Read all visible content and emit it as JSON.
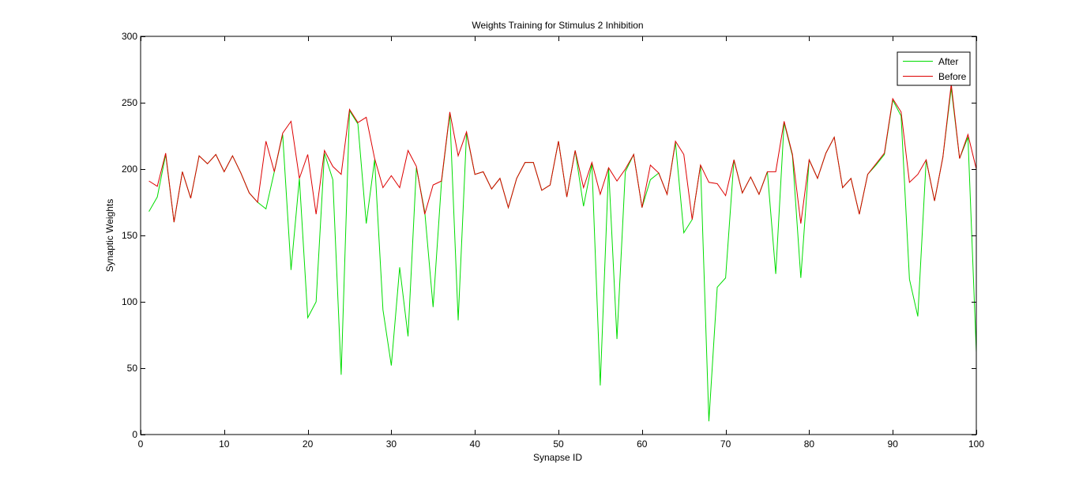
{
  "chart_data": {
    "type": "line",
    "title": "Weights Training for Stimulus 2 Inhibition",
    "xlabel": "Synapse ID",
    "ylabel": "Synaptic Weights",
    "xlim": [
      0,
      100
    ],
    "ylim": [
      0,
      300
    ],
    "xticks": [
      0,
      10,
      20,
      30,
      40,
      50,
      60,
      70,
      80,
      90,
      100
    ],
    "yticks": [
      0,
      50,
      100,
      150,
      200,
      250,
      300
    ],
    "grid": false,
    "legend_position": "top-right",
    "x": [
      1,
      2,
      3,
      4,
      5,
      6,
      7,
      8,
      9,
      10,
      11,
      12,
      13,
      14,
      15,
      16,
      17,
      18,
      19,
      20,
      21,
      22,
      23,
      24,
      25,
      26,
      27,
      28,
      29,
      30,
      31,
      32,
      33,
      34,
      35,
      36,
      37,
      38,
      39,
      40,
      41,
      42,
      43,
      44,
      45,
      46,
      47,
      48,
      49,
      50,
      51,
      52,
      53,
      54,
      55,
      56,
      57,
      58,
      59,
      60,
      61,
      62,
      63,
      64,
      65,
      66,
      67,
      68,
      69,
      70,
      71,
      72,
      73,
      74,
      75,
      76,
      77,
      78,
      79,
      80,
      81,
      82,
      83,
      84,
      85,
      86,
      87,
      88,
      89,
      90,
      91,
      92,
      93,
      94,
      95,
      96,
      97,
      98,
      99,
      100
    ],
    "series": [
      {
        "name": "After",
        "color": "#00dd00",
        "values": [
          168,
          179,
          211,
          160,
          198,
          178,
          210,
          204,
          211,
          198,
          210,
          197,
          182,
          175,
          170,
          198,
          226,
          124,
          193,
          88,
          100,
          212,
          192,
          45,
          244,
          234,
          159,
          207,
          94,
          52,
          126,
          74,
          201,
          168,
          96,
          190,
          242,
          86,
          227,
          196,
          198,
          185,
          193,
          171,
          193,
          205,
          205,
          184,
          188,
          221,
          179,
          214,
          172,
          204,
          37,
          201,
          72,
          198,
          211,
          171,
          192,
          197,
          181,
          220,
          152,
          162,
          203,
          10,
          111,
          118,
          207,
          182,
          194,
          181,
          198,
          121,
          235,
          210,
          118,
          207,
          193,
          212,
          224,
          186,
          193,
          166,
          196,
          203,
          211,
          252,
          240,
          117,
          89,
          207,
          176,
          209,
          261,
          208,
          224,
          62
        ]
      },
      {
        "name": "Before",
        "color": "#dd0000",
        "values": [
          191,
          187,
          212,
          160,
          198,
          178,
          210,
          204,
          211,
          198,
          210,
          197,
          182,
          175,
          221,
          198,
          227,
          236,
          193,
          211,
          166,
          214,
          202,
          196,
          245,
          235,
          239,
          208,
          186,
          195,
          186,
          214,
          202,
          166,
          188,
          191,
          243,
          210,
          228,
          196,
          198,
          185,
          193,
          171,
          193,
          205,
          205,
          184,
          188,
          221,
          179,
          214,
          186,
          205,
          181,
          201,
          191,
          200,
          211,
          171,
          203,
          197,
          181,
          221,
          211,
          162,
          203,
          190,
          189,
          180,
          207,
          182,
          194,
          181,
          198,
          198,
          236,
          211,
          159,
          207,
          193,
          212,
          224,
          186,
          193,
          166,
          196,
          204,
          212,
          253,
          243,
          190,
          196,
          207,
          176,
          209,
          264,
          208,
          226,
          200
        ]
      }
    ]
  }
}
